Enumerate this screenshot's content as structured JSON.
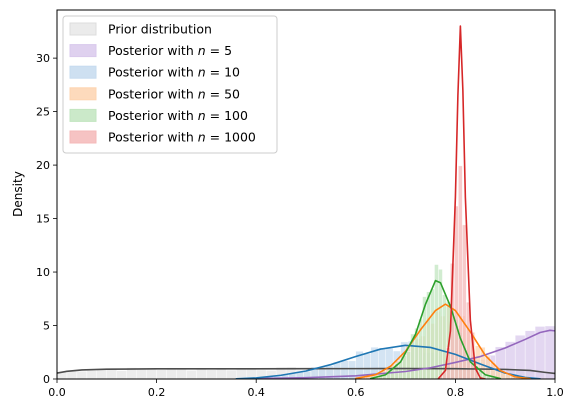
{
  "chart_data": {
    "type": "area",
    "title": "",
    "xlabel": "",
    "ylabel": "Density",
    "xlim": [
      0,
      1
    ],
    "ylim": [
      0,
      34.5
    ],
    "xticks": [
      0,
      0.2,
      0.4,
      0.6,
      0.8,
      1.0
    ],
    "xtick_labels": [
      "0.0",
      "0.2",
      "0.4",
      "0.6",
      "0.8",
      "1.0"
    ],
    "yticks": [
      0,
      5,
      10,
      15,
      20,
      25,
      30
    ],
    "ytick_labels": [
      "0",
      "5",
      "10",
      "15",
      "20",
      "25",
      "30"
    ],
    "grid": false,
    "legend_position": "top-left",
    "series": [
      {
        "name": "Prior distribution",
        "legend_prefix": "Prior distribution",
        "legend_n": "",
        "color": "#4d4d4d",
        "hist_color": "#dddddd",
        "mu": 0.5,
        "sigma": 0.3,
        "bin_width": 0.02,
        "hist_start": 0.0,
        "hist_end": 1.0,
        "kde": [
          [
            0.0,
            0.55
          ],
          [
            0.02,
            0.72
          ],
          [
            0.05,
            0.85
          ],
          [
            0.1,
            0.92
          ],
          [
            0.2,
            0.95
          ],
          [
            0.3,
            0.95
          ],
          [
            0.4,
            0.95
          ],
          [
            0.5,
            0.96
          ],
          [
            0.6,
            0.97
          ],
          [
            0.7,
            0.98
          ],
          [
            0.8,
            0.96
          ],
          [
            0.9,
            0.9
          ],
          [
            0.95,
            0.8
          ],
          [
            0.98,
            0.62
          ],
          [
            1.0,
            0.52
          ]
        ]
      },
      {
        "name": "Posterior with n=5",
        "legend_prefix": "Posterior with ",
        "legend_n": "5",
        "color": "#9467bd",
        "hist_color": "#d9c9ec",
        "mu": 1.0,
        "sigma": 0.13,
        "bin_width": 0.02,
        "hist_start": 0.42,
        "hist_end": 1.0,
        "kde": [
          [
            0.4,
            0.04
          ],
          [
            0.5,
            0.12
          ],
          [
            0.6,
            0.3
          ],
          [
            0.7,
            0.7
          ],
          [
            0.75,
            1.05
          ],
          [
            0.8,
            1.55
          ],
          [
            0.85,
            2.1
          ],
          [
            0.9,
            2.9
          ],
          [
            0.94,
            3.7
          ],
          [
            0.97,
            4.35
          ],
          [
            0.99,
            4.55
          ],
          [
            1.0,
            4.5
          ]
        ]
      },
      {
        "name": "Posterior with n=10",
        "legend_prefix": "Posterior with ",
        "legend_n": "10",
        "color": "#1f77b4",
        "hist_color": "#c6dbef",
        "mu": 0.71,
        "sigma": 0.11,
        "bin_width": 0.015,
        "hist_start": 0.36,
        "hist_end": 0.94,
        "kde": [
          [
            0.36,
            0.02
          ],
          [
            0.4,
            0.1
          ],
          [
            0.45,
            0.35
          ],
          [
            0.5,
            0.75
          ],
          [
            0.55,
            1.35
          ],
          [
            0.6,
            2.1
          ],
          [
            0.65,
            2.8
          ],
          [
            0.7,
            3.15
          ],
          [
            0.75,
            2.95
          ],
          [
            0.8,
            2.3
          ],
          [
            0.85,
            1.4
          ],
          [
            0.9,
            0.55
          ],
          [
            0.94,
            0.15
          ],
          [
            0.97,
            0.02
          ]
        ]
      },
      {
        "name": "Posterior with n=50",
        "legend_prefix": "Posterior with ",
        "legend_n": "50",
        "color": "#ff7f0e",
        "hist_color": "#fdd4b0",
        "mu": 0.785,
        "sigma": 0.058,
        "bin_width": 0.01,
        "hist_start": 0.6,
        "hist_end": 0.95,
        "kde": [
          [
            0.6,
            0.05
          ],
          [
            0.64,
            0.4
          ],
          [
            0.67,
            1.2
          ],
          [
            0.7,
            2.6
          ],
          [
            0.73,
            4.6
          ],
          [
            0.76,
            6.4
          ],
          [
            0.78,
            7.0
          ],
          [
            0.8,
            6.4
          ],
          [
            0.83,
            4.4
          ],
          [
            0.86,
            2.2
          ],
          [
            0.89,
            0.8
          ],
          [
            0.92,
            0.2
          ],
          [
            0.95,
            0.03
          ]
        ]
      },
      {
        "name": "Posterior with n=100",
        "legend_prefix": "Posterior with ",
        "legend_n": "100",
        "color": "#2ca02c",
        "hist_color": "#c2e5c0",
        "mu": 0.762,
        "sigma": 0.042,
        "bin_width": 0.008,
        "hist_start": 0.63,
        "hist_end": 0.9,
        "kde": [
          [
            0.63,
            0.05
          ],
          [
            0.66,
            0.4
          ],
          [
            0.69,
            1.6
          ],
          [
            0.72,
            4.2
          ],
          [
            0.74,
            7.0
          ],
          [
            0.76,
            9.2
          ],
          [
            0.77,
            9.0
          ],
          [
            0.79,
            6.8
          ],
          [
            0.81,
            3.8
          ],
          [
            0.83,
            1.6
          ],
          [
            0.86,
            0.4
          ],
          [
            0.89,
            0.04
          ]
        ]
      },
      {
        "name": "Posterior with n=1000",
        "legend_prefix": "Posterior with ",
        "legend_n": "1000",
        "color": "#d62728",
        "hist_color": "#f4b9b9",
        "mu": 0.811,
        "sigma": 0.012,
        "bin_width": 0.008,
        "hist_start": 0.766,
        "hist_end": 0.86,
        "kde": [
          [
            0.766,
            0.05
          ],
          [
            0.78,
            0.8
          ],
          [
            0.79,
            4.5
          ],
          [
            0.8,
            17.0
          ],
          [
            0.805,
            26.5
          ],
          [
            0.81,
            33.0
          ],
          [
            0.815,
            27.0
          ],
          [
            0.82,
            17.0
          ],
          [
            0.83,
            5.5
          ],
          [
            0.84,
            1.0
          ],
          [
            0.85,
            0.1
          ],
          [
            0.86,
            0.0
          ]
        ]
      }
    ]
  }
}
